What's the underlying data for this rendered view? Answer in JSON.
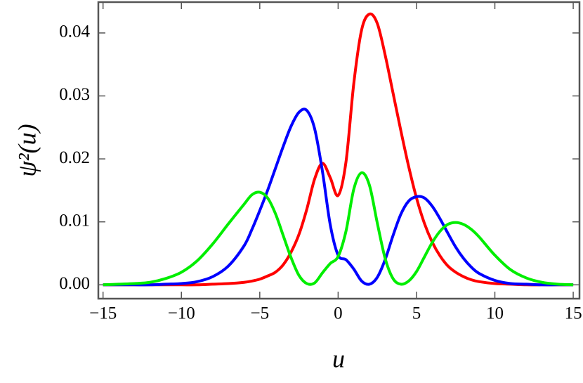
{
  "chart_data": {
    "type": "line",
    "xlabel": "u",
    "ylabel": "ψ²(u)",
    "x": [
      -15,
      -14,
      -13,
      -12,
      -11,
      -10,
      -9,
      -8,
      -7,
      -6,
      -5.5,
      -5,
      -4.5,
      -4,
      -3.5,
      -3,
      -2.5,
      -2,
      -1.5,
      -1,
      -0.5,
      0,
      0.5,
      1,
      1.5,
      2,
      2.5,
      3,
      3.5,
      4,
      4.5,
      5,
      5.5,
      6,
      6.5,
      7,
      7.5,
      8,
      8.5,
      9,
      10,
      11,
      12,
      13,
      14,
      15
    ],
    "series": [
      {
        "color": "#ff0000",
        "values": [
          0,
          0,
          0,
          0,
          0,
          0,
          0,
          0.0001,
          0.0002,
          0.0004,
          0.0006,
          0.0009,
          0.0014,
          0.002,
          0.0032,
          0.0052,
          0.008,
          0.012,
          0.0168,
          0.0193,
          0.017,
          0.0142,
          0.0195,
          0.032,
          0.0405,
          0.043,
          0.0415,
          0.0365,
          0.0305,
          0.0245,
          0.0188,
          0.0138,
          0.0098,
          0.0068,
          0.0046,
          0.003,
          0.002,
          0.0013,
          0.0008,
          0.0005,
          0.0002,
          0.0001,
          0,
          0,
          0,
          0
        ]
      },
      {
        "color": "#0000ff",
        "values": [
          0,
          0,
          0,
          0,
          0.0001,
          0.0002,
          0.0005,
          0.0013,
          0.003,
          0.0062,
          0.0088,
          0.0118,
          0.015,
          0.0185,
          0.022,
          0.0252,
          0.0274,
          0.0277,
          0.0248,
          0.018,
          0.0095,
          0.0047,
          0.004,
          0.0025,
          0.0006,
          0.0001,
          0.0012,
          0.004,
          0.0078,
          0.0112,
          0.0133,
          0.014,
          0.0138,
          0.0125,
          0.0105,
          0.0082,
          0.006,
          0.0042,
          0.0028,
          0.0018,
          0.0007,
          0.0002,
          0.0001,
          0,
          0,
          0
        ]
      },
      {
        "color": "#00ee00",
        "values": [
          0,
          0.0001,
          0.0002,
          0.0004,
          0.001,
          0.002,
          0.0038,
          0.0065,
          0.0097,
          0.0128,
          0.0143,
          0.0147,
          0.0138,
          0.0113,
          0.0078,
          0.0043,
          0.0015,
          0.0002,
          0.0003,
          0.0019,
          0.0034,
          0.0045,
          0.0085,
          0.0152,
          0.0178,
          0.0158,
          0.0098,
          0.0042,
          0.001,
          0.0001,
          0.0006,
          0.0021,
          0.0044,
          0.0067,
          0.0085,
          0.0096,
          0.0099,
          0.0096,
          0.0088,
          0.0076,
          0.0047,
          0.0024,
          0.0011,
          0.0004,
          0.0001,
          0
        ]
      }
    ],
    "xlim": [
      -15.3,
      15.4
    ],
    "ylim": [
      -0.0022,
      0.0449
    ],
    "xticks": [
      {
        "value": -15,
        "label": "−15"
      },
      {
        "value": -10,
        "label": "−10"
      },
      {
        "value": -5,
        "label": "−5"
      },
      0,
      5,
      10,
      15
    ],
    "yticks": [
      {
        "value": 0,
        "label": "0.00"
      },
      0.01,
      0.02,
      0.03,
      0.04
    ],
    "frame_color": "#555555"
  }
}
